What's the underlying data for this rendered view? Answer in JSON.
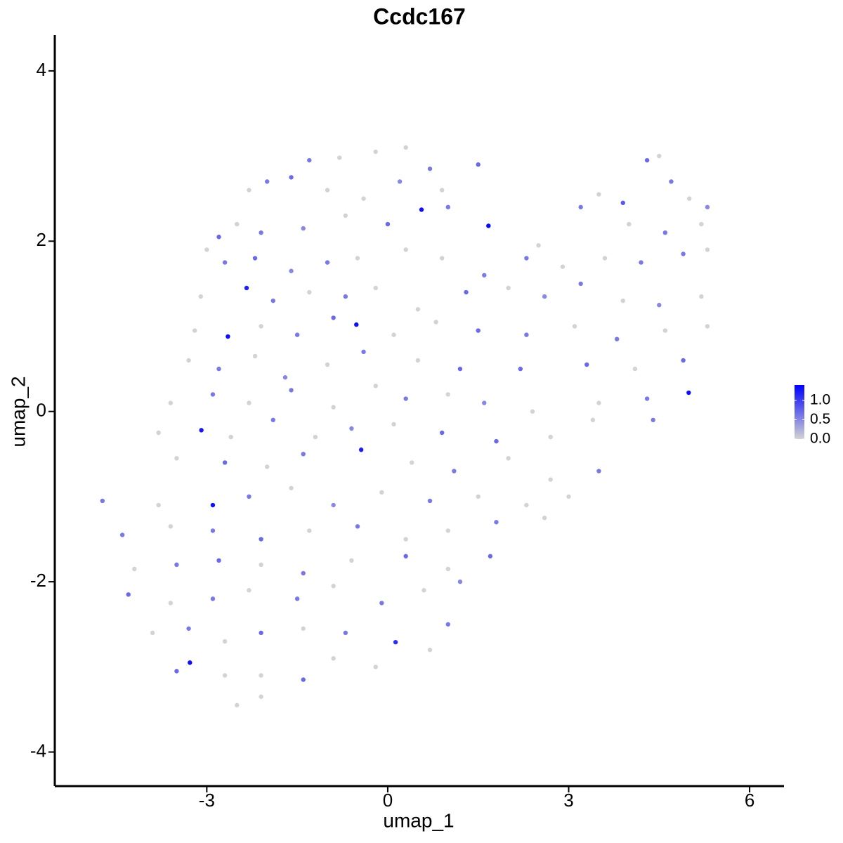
{
  "chart_data": {
    "type": "scatter",
    "title": "Ccdc167",
    "x_label": "umap_1",
    "y_label": "umap_2",
    "xlim": [
      -5.52,
      6.57
    ],
    "ylim": [
      -4.4,
      4.42
    ],
    "xticks": [
      -3,
      0,
      3,
      6
    ],
    "yticks": [
      -4,
      -2,
      0,
      2,
      4
    ],
    "low_color": "#d3d3d3",
    "high_color": "#0000ff",
    "colorlim": [
      0,
      1.4
    ],
    "colorbar_ticks": [
      {
        "value": 0,
        "label": "0.0"
      },
      {
        "value": 0.5,
        "label": "0.5"
      },
      {
        "value": 1,
        "label": "1.0"
      }
    ],
    "x": [
      -1.3,
      -0.8,
      -0.2,
      0.3,
      0.7,
      1.5,
      4.5,
      4.3,
      -2.3,
      -2.0,
      -1.6,
      -1.0,
      -0.4,
      0.2,
      0.9,
      3.5,
      3.9,
      4.7,
      5.0,
      5.3,
      -2.8,
      -2.5,
      -2.1,
      -1.4,
      -0.7,
      0.0,
      0.56,
      1.0,
      1.67,
      2.5,
      3.2,
      4.0,
      4.6,
      5.2,
      -3.0,
      -2.7,
      -2.2,
      -1.6,
      -1.0,
      -0.5,
      0.3,
      0.9,
      1.6,
      2.3,
      2.9,
      3.6,
      4.2,
      4.9,
      5.3,
      -3.1,
      -2.34,
      -1.9,
      -1.3,
      -0.7,
      -0.2,
      0.5,
      1.3,
      2.0,
      2.6,
      3.2,
      3.9,
      4.5,
      5.2,
      -3.2,
      -2.65,
      -2.1,
      -1.5,
      -0.9,
      -0.52,
      0.1,
      0.8,
      1.5,
      2.3,
      3.1,
      3.8,
      4.6,
      5.3,
      -3.3,
      -2.8,
      -2.2,
      -1.7,
      -1.0,
      -0.4,
      0.5,
      1.2,
      2.2,
      3.3,
      4.1,
      4.9,
      -3.6,
      -2.9,
      -2.3,
      -1.6,
      -0.9,
      -0.2,
      0.3,
      1.0,
      1.6,
      2.4,
      3.5,
      4.3,
      4.99,
      -3.8,
      -3.09,
      -2.6,
      -1.9,
      -1.2,
      -0.6,
      0.1,
      0.9,
      1.8,
      2.7,
      3.4,
      4.4,
      -3.5,
      -2.7,
      -2.0,
      -1.4,
      -0.44,
      0.4,
      1.1,
      2.0,
      2.7,
      3.5,
      -4.73,
      -3.8,
      -2.9,
      -2.3,
      -1.6,
      -0.9,
      -0.1,
      0.7,
      1.5,
      2.3,
      3.0,
      -4.4,
      -3.6,
      -2.9,
      -2.1,
      -1.3,
      -0.5,
      0.3,
      1.0,
      1.8,
      2.6,
      -4.2,
      -3.5,
      -2.8,
      -2.1,
      -1.4,
      -0.6,
      0.3,
      1.0,
      1.7,
      -4.3,
      -3.6,
      -2.9,
      -2.3,
      -1.5,
      -0.9,
      -0.1,
      0.6,
      1.2,
      -3.9,
      -3.3,
      -2.7,
      -2.1,
      -1.4,
      -0.7,
      0.13,
      0.7,
      1.0,
      -3.5,
      -3.28,
      -2.7,
      -2.1,
      -1.4,
      -0.9,
      -0.2,
      -2.5,
      -2.1
    ],
    "values": [
      2.95,
      2.98,
      3.05,
      3.1,
      2.85,
      2.9,
      3.0,
      2.95,
      2.6,
      2.7,
      2.75,
      2.6,
      2.5,
      2.7,
      2.6,
      2.55,
      2.45,
      2.7,
      2.5,
      2.4,
      2.05,
      2.2,
      2.1,
      2.15,
      2.3,
      2.2,
      2.37,
      2.4,
      2.18,
      1.95,
      2.4,
      2.2,
      2.1,
      2.2,
      1.9,
      1.75,
      1.8,
      1.65,
      1.75,
      1.8,
      1.9,
      1.8,
      1.6,
      1.8,
      1.7,
      1.8,
      1.75,
      1.85,
      1.9,
      1.35,
      1.45,
      1.3,
      1.4,
      1.35,
      1.45,
      1.2,
      1.4,
      1.45,
      1.35,
      1.5,
      1.3,
      1.25,
      1.35,
      0.95,
      0.88,
      1.0,
      0.9,
      1.1,
      1.02,
      0.9,
      1.05,
      0.95,
      0.9,
      1.0,
      0.85,
      0.95,
      1.0,
      0.6,
      0.5,
      0.65,
      0.4,
      0.55,
      0.7,
      0.6,
      0.5,
      0.5,
      0.55,
      0.5,
      0.6,
      0.1,
      0.2,
      0.1,
      0.25,
      0.05,
      0.3,
      0.15,
      0.2,
      0.1,
      0.0,
      0.1,
      0.15,
      0.22,
      -0.25,
      -0.22,
      -0.3,
      -0.1,
      -0.3,
      -0.2,
      -0.15,
      -0.25,
      -0.35,
      -0.3,
      -0.1,
      -0.1,
      -0.55,
      -0.6,
      -0.65,
      -0.5,
      -0.45,
      -0.6,
      -0.7,
      -0.55,
      -0.8,
      -0.7,
      -1.05,
      -1.1,
      -1.1,
      -1.0,
      -0.9,
      -1.1,
      -0.95,
      -1.05,
      -1.0,
      -1.1,
      -1.0,
      -1.45,
      -1.35,
      -1.4,
      -1.5,
      -1.4,
      -1.35,
      -1.5,
      -1.4,
      -1.3,
      -1.25,
      -1.85,
      -1.8,
      -1.75,
      -1.8,
      -1.9,
      -1.75,
      -1.7,
      -1.85,
      -1.7,
      -2.15,
      -2.25,
      -2.2,
      -2.1,
      -2.2,
      -2.05,
      -2.25,
      -2.1,
      -2.0,
      -2.6,
      -2.55,
      -2.7,
      -2.6,
      -2.55,
      -2.6,
      -2.71,
      -2.8,
      -2.5,
      -3.05,
      -2.95,
      -3.1,
      -3.1,
      -3.15,
      -2.9,
      -3.0,
      -3.45,
      -3.35
    ],
    "expression": [
      0.6,
      0,
      0,
      0,
      0.6,
      0.7,
      0,
      0.7,
      0,
      0.6,
      0.7,
      0,
      0,
      0.5,
      0,
      0,
      0.8,
      0.6,
      0,
      0.5,
      0.7,
      0,
      0.6,
      0.5,
      0,
      0.7,
      1.3,
      0.6,
      1.35,
      0,
      0.6,
      0,
      0.6,
      0,
      0,
      0.6,
      0.7,
      0.5,
      0.6,
      0,
      0,
      0,
      0.6,
      0.6,
      0,
      0,
      0.6,
      0.6,
      0,
      0,
      1.2,
      0.6,
      0,
      0.6,
      0,
      0,
      0.7,
      0,
      0.5,
      0.6,
      0,
      0.5,
      0,
      0,
      1.3,
      0,
      0.6,
      0.7,
      1.3,
      0,
      0,
      0.7,
      0.6,
      0,
      0.6,
      0,
      0,
      0,
      0.6,
      0,
      0.5,
      0,
      0.6,
      0,
      0.7,
      0.7,
      0.7,
      0,
      0.7,
      0,
      0.6,
      0,
      0.6,
      0,
      0,
      0.6,
      0,
      0.5,
      0,
      0,
      0.6,
      1.3,
      0,
      1.25,
      0,
      0.6,
      0,
      0.5,
      0,
      0.7,
      0.7,
      0,
      0,
      0.6,
      0,
      0.7,
      0,
      0.6,
      1.2,
      0,
      0.6,
      0,
      0,
      0.6,
      0.6,
      0,
      1.3,
      0.6,
      0,
      0.5,
      0,
      0.6,
      0,
      0,
      0,
      0.6,
      0,
      0.6,
      0.7,
      0,
      0.6,
      0,
      0,
      0.6,
      0,
      0,
      0.6,
      0.7,
      0,
      0.6,
      0,
      0.7,
      0,
      0.7,
      0.7,
      0,
      0.6,
      0,
      0.6,
      0,
      0.6,
      0,
      0.5,
      0,
      0.6,
      0,
      0.7,
      0,
      0.6,
      1.1,
      0,
      0.6,
      0.7,
      1.3,
      0,
      0,
      0.7,
      0,
      0,
      0,
      0
    ]
  }
}
